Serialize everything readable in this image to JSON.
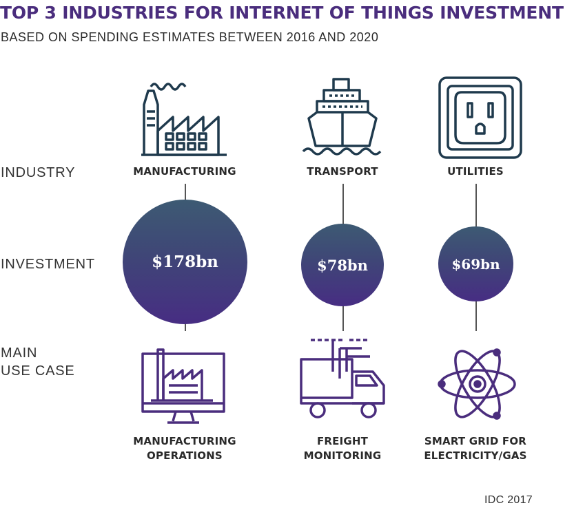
{
  "title": "TOP 3 INDUSTRIES FOR INTERNET OF THINGS INVESTMENT",
  "subtitle": "BASED ON SPENDING ESTIMATES BETWEEN 2016 AND 2020",
  "row_labels": {
    "industry": "INDUSTRY",
    "investment": "INVESTMENT",
    "use_case": [
      "MAIN",
      "USE CASE"
    ]
  },
  "columns": [
    {
      "industry": "MANUFACTURING",
      "investment": "$178bn",
      "investment_value_bn": 178,
      "use_case": [
        "MANUFACTURING",
        "OPERATIONS"
      ],
      "industry_icon": "factory-icon",
      "use_case_icon": "monitor-factory-icon"
    },
    {
      "industry": "TRANSPORT",
      "investment": "$78bn",
      "investment_value_bn": 78,
      "use_case": [
        "FREIGHT",
        "MONITORING"
      ],
      "industry_icon": "ship-icon",
      "use_case_icon": "delivery-truck-icon"
    },
    {
      "industry": "UTILITIES",
      "investment": "$69bn",
      "investment_value_bn": 69,
      "use_case": [
        "SMART GRID FOR",
        "ELECTRICITY/GAS"
      ],
      "industry_icon": "power-outlet-icon",
      "use_case_icon": "atom-icon"
    }
  ],
  "source": "IDC 2017",
  "colors": {
    "title": "#4a2d7d",
    "industry_icons": "#1f3a4d",
    "use_case_icons": "#4a2d7d",
    "bubble_top": "#3d5a73",
    "bubble_bottom": "#472d83"
  }
}
